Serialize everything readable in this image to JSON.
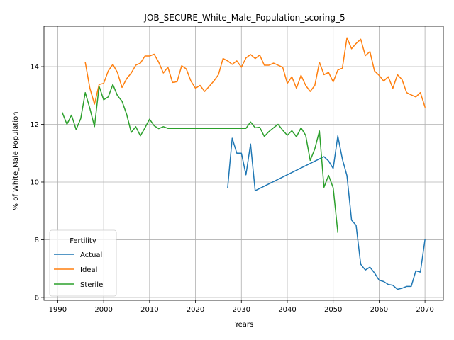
{
  "chart_data": {
    "type": "line",
    "title": "JOB_SECURE_White_Male_Population_scoring_5",
    "xlabel": "Years",
    "ylabel": "% of White_Male Population",
    "xlim": [
      1987,
      2074
    ],
    "ylim": [
      5.9,
      15.4
    ],
    "xticks": [
      1990,
      2000,
      2010,
      2020,
      2030,
      2040,
      2050,
      2060,
      2070
    ],
    "yticks": [
      6,
      8,
      10,
      12,
      14
    ],
    "grid": true,
    "legend": {
      "title": "Fertility",
      "placement": "lower-left"
    },
    "series": [
      {
        "name": "Actual",
        "color": "#1f77b4",
        "points": [
          [
            2027,
            9.8
          ],
          [
            2028,
            11.52
          ],
          [
            2029,
            11.0
          ],
          [
            2030,
            11.0
          ],
          [
            2031,
            10.25
          ],
          [
            2032,
            11.32
          ],
          [
            2033,
            9.7
          ],
          [
            2048,
            10.88
          ],
          [
            2049,
            10.73
          ],
          [
            2050,
            10.47
          ],
          [
            2051,
            11.6
          ],
          [
            2052,
            10.8
          ],
          [
            2053,
            10.22
          ],
          [
            2054,
            8.68
          ],
          [
            2055,
            8.5
          ],
          [
            2056,
            7.15
          ],
          [
            2057,
            6.95
          ],
          [
            2058,
            7.05
          ],
          [
            2059,
            6.85
          ],
          [
            2060,
            6.6
          ],
          [
            2061,
            6.55
          ],
          [
            2062,
            6.45
          ],
          [
            2063,
            6.42
          ],
          [
            2064,
            6.28
          ],
          [
            2065,
            6.32
          ],
          [
            2066,
            6.38
          ],
          [
            2067,
            6.38
          ],
          [
            2068,
            6.92
          ],
          [
            2069,
            6.88
          ],
          [
            2070,
            8.0
          ]
        ]
      },
      {
        "name": "Ideal",
        "color": "#ff7f0e",
        "points": [
          [
            1996,
            14.15
          ],
          [
            1997,
            13.25
          ],
          [
            1998,
            12.7
          ],
          [
            1999,
            13.38
          ],
          [
            2000,
            13.42
          ],
          [
            2001,
            13.85
          ],
          [
            2002,
            14.08
          ],
          [
            2003,
            13.8
          ],
          [
            2004,
            13.28
          ],
          [
            2005,
            13.58
          ],
          [
            2006,
            13.78
          ],
          [
            2007,
            14.05
          ],
          [
            2008,
            14.12
          ],
          [
            2009,
            14.37
          ],
          [
            2010,
            14.37
          ],
          [
            2011,
            14.43
          ],
          [
            2012,
            14.15
          ],
          [
            2013,
            13.78
          ],
          [
            2014,
            13.98
          ],
          [
            2015,
            13.45
          ],
          [
            2016,
            13.48
          ],
          [
            2017,
            14.03
          ],
          [
            2018,
            13.92
          ],
          [
            2019,
            13.5
          ],
          [
            2020,
            13.25
          ],
          [
            2021,
            13.35
          ],
          [
            2022,
            13.14
          ],
          [
            2023,
            13.32
          ],
          [
            2024,
            13.5
          ],
          [
            2025,
            13.72
          ],
          [
            2026,
            14.28
          ],
          [
            2027,
            14.2
          ],
          [
            2028,
            14.08
          ],
          [
            2029,
            14.2
          ],
          [
            2030,
            13.98
          ],
          [
            2031,
            14.3
          ],
          [
            2032,
            14.42
          ],
          [
            2033,
            14.28
          ],
          [
            2034,
            14.4
          ],
          [
            2035,
            14.05
          ],
          [
            2036,
            14.05
          ],
          [
            2037,
            14.12
          ],
          [
            2038,
            14.05
          ],
          [
            2039,
            13.98
          ],
          [
            2040,
            13.42
          ],
          [
            2041,
            13.65
          ],
          [
            2042,
            13.25
          ],
          [
            2043,
            13.7
          ],
          [
            2044,
            13.35
          ],
          [
            2045,
            13.14
          ],
          [
            2046,
            13.35
          ],
          [
            2047,
            14.15
          ],
          [
            2048,
            13.72
          ],
          [
            2049,
            13.8
          ],
          [
            2050,
            13.47
          ],
          [
            2051,
            13.88
          ],
          [
            2052,
            13.95
          ],
          [
            2053,
            15.0
          ],
          [
            2054,
            14.62
          ],
          [
            2055,
            14.8
          ],
          [
            2056,
            14.95
          ],
          [
            2057,
            14.38
          ],
          [
            2058,
            14.52
          ],
          [
            2059,
            13.85
          ],
          [
            2060,
            13.7
          ],
          [
            2061,
            13.5
          ],
          [
            2062,
            13.65
          ],
          [
            2063,
            13.25
          ],
          [
            2064,
            13.72
          ],
          [
            2065,
            13.55
          ],
          [
            2066,
            13.1
          ],
          [
            2067,
            13.02
          ],
          [
            2068,
            12.95
          ],
          [
            2069,
            13.1
          ],
          [
            2070,
            12.6
          ]
        ]
      },
      {
        "name": "Sterile",
        "color": "#2ca02c",
        "points": [
          [
            1991,
            12.4
          ],
          [
            1992,
            12.0
          ],
          [
            1993,
            12.32
          ],
          [
            1994,
            11.82
          ],
          [
            1995,
            12.2
          ],
          [
            1996,
            13.1
          ],
          [
            1997,
            12.55
          ],
          [
            1998,
            11.92
          ],
          [
            1999,
            13.32
          ],
          [
            2000,
            12.85
          ],
          [
            2001,
            12.95
          ],
          [
            2002,
            13.38
          ],
          [
            2003,
            13.0
          ],
          [
            2004,
            12.8
          ],
          [
            2005,
            12.35
          ],
          [
            2006,
            11.72
          ],
          [
            2007,
            11.92
          ],
          [
            2008,
            11.6
          ],
          [
            2009,
            11.88
          ],
          [
            2010,
            12.18
          ],
          [
            2011,
            11.95
          ],
          [
            2012,
            11.85
          ],
          [
            2013,
            11.92
          ],
          [
            2014,
            11.86
          ],
          [
            2030,
            11.86
          ],
          [
            2031,
            11.86
          ],
          [
            2032,
            12.08
          ],
          [
            2033,
            11.88
          ],
          [
            2034,
            11.9
          ],
          [
            2035,
            11.58
          ],
          [
            2036,
            11.75
          ],
          [
            2037,
            11.88
          ],
          [
            2038,
            12.0
          ],
          [
            2039,
            11.8
          ],
          [
            2040,
            11.62
          ],
          [
            2041,
            11.78
          ],
          [
            2042,
            11.57
          ],
          [
            2043,
            11.88
          ],
          [
            2044,
            11.62
          ],
          [
            2045,
            10.75
          ],
          [
            2046,
            11.15
          ],
          [
            2047,
            11.77
          ],
          [
            2048,
            9.82
          ],
          [
            2049,
            10.23
          ],
          [
            2050,
            9.8
          ],
          [
            2051,
            8.26
          ]
        ]
      }
    ]
  }
}
